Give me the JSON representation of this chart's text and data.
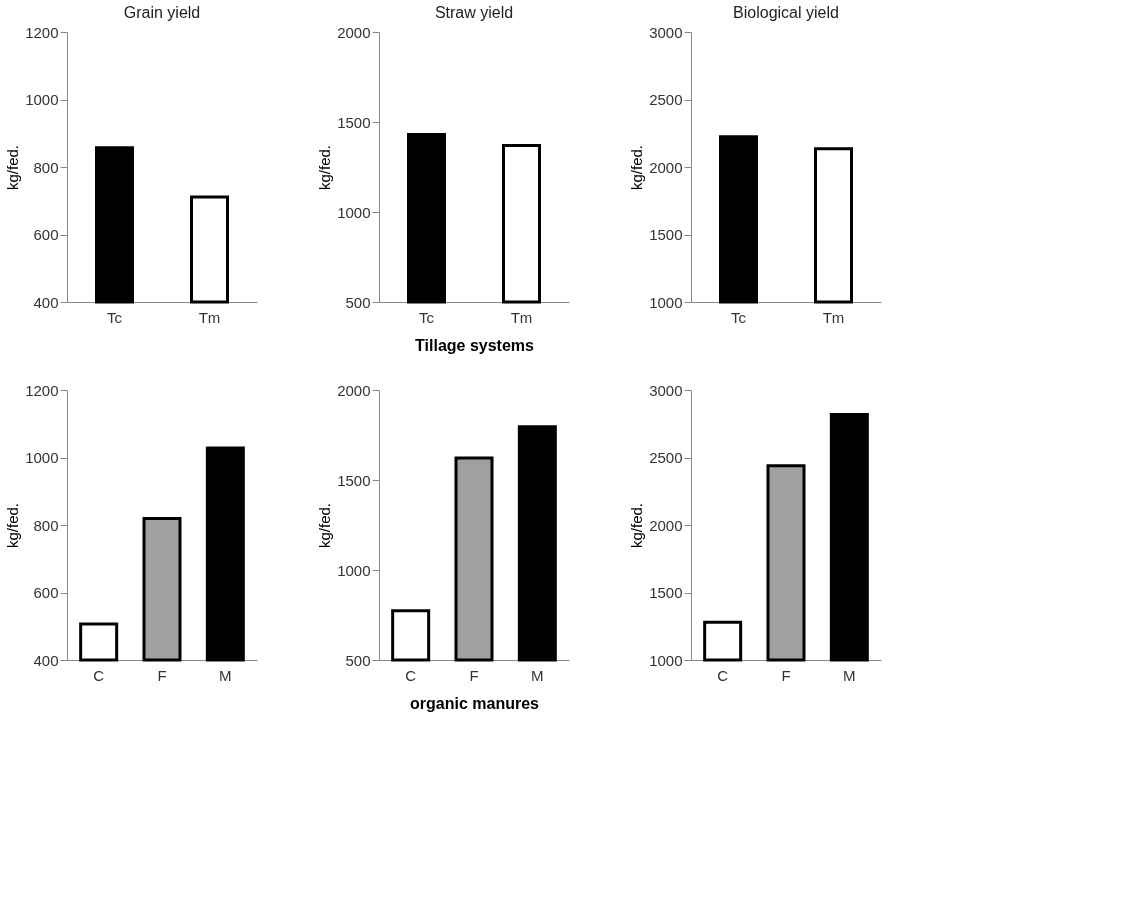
{
  "chart_data": [
    {
      "type": "bar",
      "title": "Grain yield",
      "ylabel": "kg/fed.",
      "categories": [
        "Tc",
        "Tm"
      ],
      "values": [
        857,
        711
      ],
      "colors": [
        "#000000",
        "#ffffff"
      ],
      "ylim": [
        400,
        1200
      ],
      "yticks": [
        400,
        600,
        800,
        1000,
        1200
      ],
      "grid": false,
      "legend": false
    },
    {
      "type": "bar",
      "title": "Straw  yield",
      "ylabel": "kg/fed.",
      "xlabel": "Tillage systems",
      "categories": [
        "Tc",
        "Tm"
      ],
      "values": [
        1431,
        1369
      ],
      "colors": [
        "#000000",
        "#ffffff"
      ],
      "ylim": [
        500,
        2000
      ],
      "yticks": [
        500,
        1000,
        1500,
        2000
      ],
      "grid": false,
      "legend": false
    },
    {
      "type": "bar",
      "title": "Biological yield",
      "ylabel": "kg/fed.",
      "categories": [
        "Tc",
        "Tm"
      ],
      "values": [
        2225,
        2135
      ],
      "colors": [
        "#000000",
        "#ffffff"
      ],
      "ylim": [
        1000,
        3000
      ],
      "yticks": [
        1000,
        1500,
        2000,
        2500,
        3000
      ],
      "grid": false,
      "legend": false
    },
    {
      "type": "bar",
      "ylabel": "kg/fed.",
      "categories": [
        "C",
        "F",
        "M"
      ],
      "values": [
        507,
        819,
        1028
      ],
      "colors": [
        "#ffffff",
        "#a0a0a0",
        "#000000"
      ],
      "ylim": [
        400,
        1200
      ],
      "yticks": [
        400,
        600,
        800,
        1000,
        1200
      ],
      "grid": false,
      "legend": false
    },
    {
      "type": "bar",
      "ylabel": "kg/fed.",
      "xlabel": "organic  manures",
      "categories": [
        "C",
        "F",
        "M"
      ],
      "values": [
        774,
        1622,
        1796
      ],
      "colors": [
        "#ffffff",
        "#a0a0a0",
        "#000000"
      ],
      "ylim": [
        500,
        2000
      ],
      "yticks": [
        500,
        1000,
        1500,
        2000
      ],
      "grid": false,
      "legend": false
    },
    {
      "type": "bar",
      "ylabel": "kg/fed.",
      "categories": [
        "C",
        "F",
        "M"
      ],
      "values": [
        1279,
        2439,
        2818
      ],
      "colors": [
        "#ffffff",
        "#a0a0a0",
        "#000000"
      ],
      "ylim": [
        1000,
        3000
      ],
      "yticks": [
        1000,
        1500,
        2000,
        2500,
        3000
      ],
      "grid": false,
      "legend": false
    }
  ]
}
